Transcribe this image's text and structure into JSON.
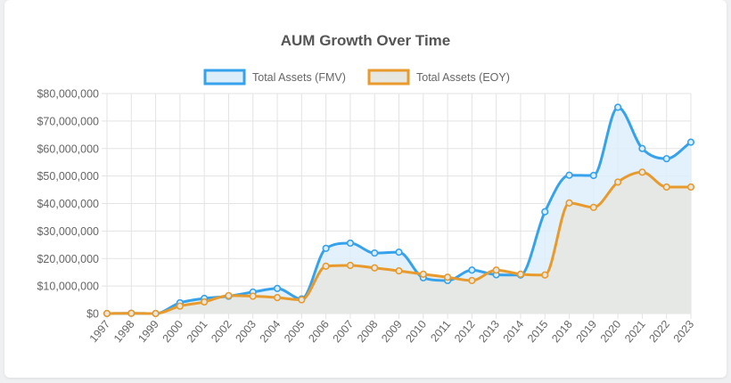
{
  "chart_data": {
    "type": "line",
    "title": "AUM Growth Over Time",
    "categories": [
      "1997",
      "1998",
      "1999",
      "2000",
      "2001",
      "2002",
      "2003",
      "2004",
      "2005",
      "2006",
      "2007",
      "2008",
      "2009",
      "2010",
      "2011",
      "2012",
      "2013",
      "2014",
      "2015",
      "2018",
      "2019",
      "2020",
      "2021",
      "2022",
      "2023"
    ],
    "series": [
      {
        "name": "Total Assets (FMV)",
        "color": "#36a2eb",
        "fill": "#ddeefb",
        "values": [
          0,
          100000,
          0,
          3900000,
          5500000,
          6300000,
          7800000,
          9100000,
          5300000,
          23700000,
          25600000,
          22000000,
          22300000,
          13000000,
          12000000,
          15800000,
          14100000,
          14000000,
          37000000,
          50300000,
          50200000,
          75000000,
          60000000,
          56300000,
          62300000
        ]
      },
      {
        "name": "Total Assets (EOY)",
        "color": "#e89a2c",
        "fill": "#e7e7e2",
        "values": [
          0,
          100000,
          0,
          2700000,
          4200000,
          6500000,
          6300000,
          5800000,
          5000000,
          17200000,
          17500000,
          16600000,
          15500000,
          14300000,
          13200000,
          12000000,
          15800000,
          14300000,
          14000000,
          40200000,
          38600000,
          47800000,
          51400000,
          46000000,
          46000000
        ]
      }
    ],
    "yticks": [
      "$0",
      "$10,000,000",
      "$20,000,000",
      "$30,000,000",
      "$40,000,000",
      "$50,000,000",
      "$60,000,000",
      "$70,000,000",
      "$80,000,000"
    ],
    "ylim": [
      0,
      80000000
    ],
    "grid": true,
    "legend": "top-center"
  }
}
